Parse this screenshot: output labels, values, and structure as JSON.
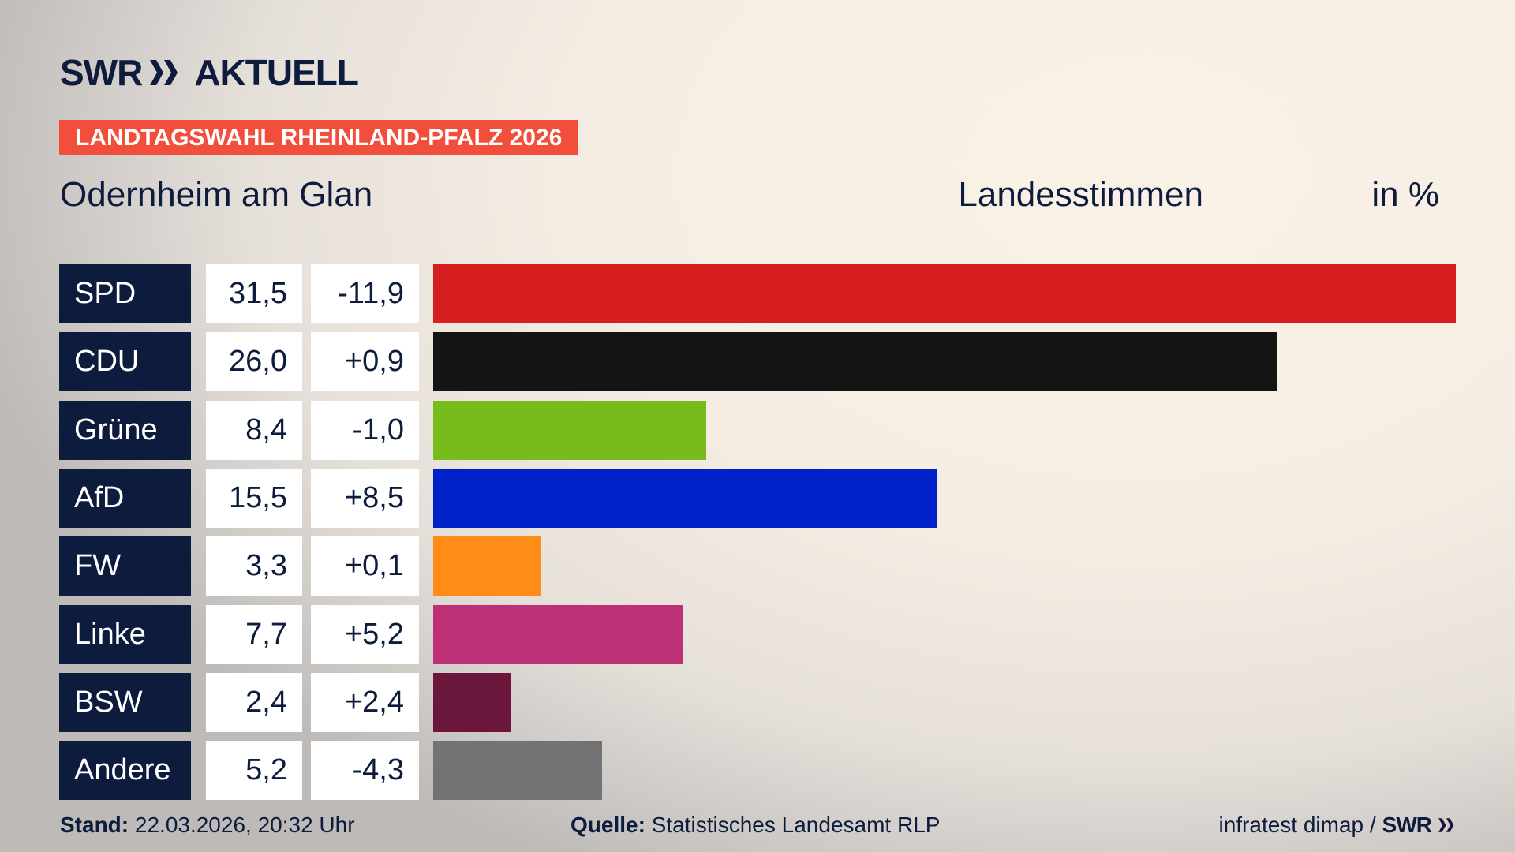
{
  "header": {
    "logo": "SWR AKTUELL",
    "banner": "LANDTAGSWAHL RHEINLAND-PFALZ 2026",
    "location": "Odernheim am Glan",
    "measure": "Landesstimmen",
    "unit": "in %"
  },
  "colors": {
    "navy": "#0d1b3d",
    "banner": "#f24e3c"
  },
  "chart_data": {
    "type": "bar",
    "orientation": "horizontal",
    "xlim": [
      0,
      31.5
    ],
    "categories": [
      "SPD",
      "CDU",
      "Grüne",
      "AfD",
      "FW",
      "Linke",
      "BSW",
      "Andere"
    ],
    "values": [
      31.5,
      26.0,
      8.4,
      15.5,
      3.3,
      7.7,
      2.4,
      5.2
    ],
    "value_labels": [
      "31,5",
      "26,0",
      "8,4",
      "15,5",
      "3,3",
      "7,7",
      "2,4",
      "5,2"
    ],
    "diff_labels": [
      "-11,9",
      "+0,9",
      "-1,0",
      "+8,5",
      "+0,1",
      "+5,2",
      "+2,4",
      "-4,3"
    ],
    "colors": [
      "#d71f1f",
      "#141414",
      "#78bc1b",
      "#0021c8",
      "#ff8c17",
      "#bd3075",
      "#6a173b",
      "#737373"
    ]
  },
  "footer": {
    "stand_label": "Stand:",
    "stand_value": "22.03.2026, 20:32 Uhr",
    "source_label": "Quelle:",
    "source_value": "Statistisches Landesamt RLP",
    "credit": "infratest dimap /",
    "credit_logo": "SWR"
  }
}
